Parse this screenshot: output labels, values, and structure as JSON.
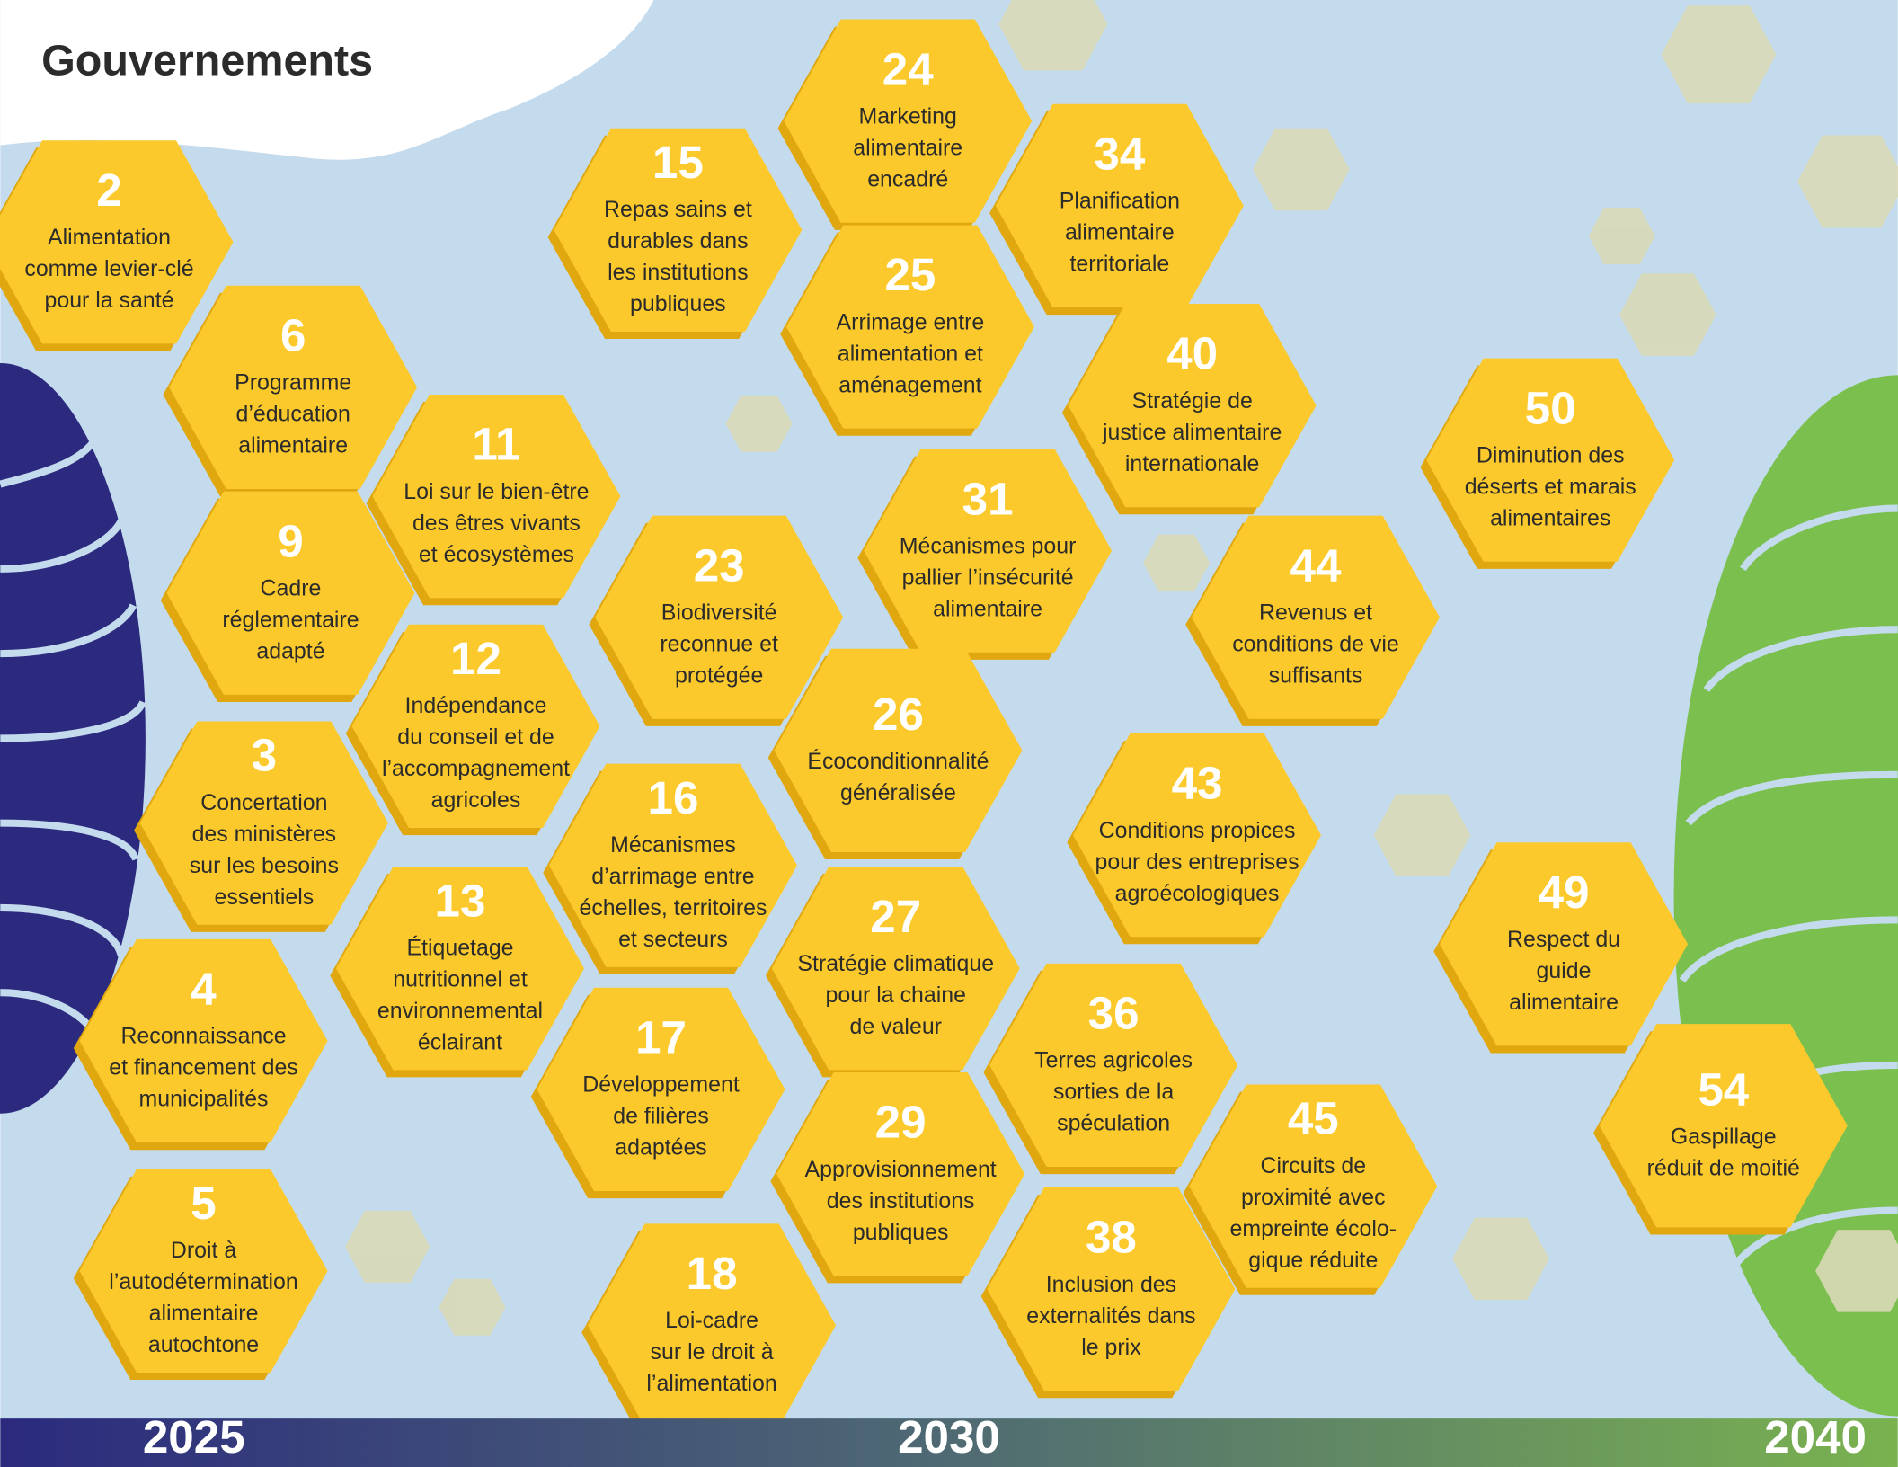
{
  "header": {
    "title": "Gouvernements"
  },
  "hexes": [
    {
      "number": "2",
      "lines": [
        "Alimentation",
        "comme levier-clé",
        "pour la santé"
      ]
    },
    {
      "number": "6",
      "lines": [
        "Programme",
        "d’éducation",
        "alimentaire"
      ]
    },
    {
      "number": "9",
      "lines": [
        "Cadre",
        "réglementaire",
        "adapté"
      ]
    },
    {
      "number": "11",
      "lines": [
        "Loi sur le bien-être",
        "des êtres vivants",
        "et écosystèmes"
      ]
    },
    {
      "number": "12",
      "lines": [
        "Indépendance",
        "du conseil et de",
        "l’accompagnement",
        "agricoles"
      ]
    },
    {
      "number": "3",
      "lines": [
        "Concertation",
        "des ministères",
        "sur les besoins",
        "essentiels"
      ]
    },
    {
      "number": "13",
      "lines": [
        "Étiquetage",
        "nutritionnel et",
        "environnemental",
        "éclairant"
      ]
    },
    {
      "number": "4",
      "lines": [
        "Reconnaissance",
        "et financement des",
        "municipalités"
      ]
    },
    {
      "number": "5",
      "lines": [
        "Droit à",
        "l’autodétermination",
        "alimentaire",
        "autochtone"
      ]
    },
    {
      "number": "15",
      "lines": [
        "Repas sains et",
        "durables dans",
        "les institutions",
        "publiques"
      ]
    },
    {
      "number": "24",
      "lines": [
        "Marketing",
        "alimentaire",
        "encadré"
      ]
    },
    {
      "number": "25",
      "lines": [
        "Arrimage entre",
        "alimentation et",
        "aménagement"
      ]
    },
    {
      "number": "34",
      "lines": [
        "Planification",
        "alimentaire",
        "territoriale"
      ]
    },
    {
      "number": "23",
      "lines": [
        "Biodiversité",
        "reconnue et",
        "protégée"
      ]
    },
    {
      "number": "31",
      "lines": [
        "Mécanismes pour",
        "pallier l’insécurité",
        "alimentaire"
      ]
    },
    {
      "number": "40",
      "lines": [
        "Stratégie de",
        "justice alimentaire",
        "internationale"
      ]
    },
    {
      "number": "16",
      "lines": [
        "Mécanismes",
        "d’arrimage entre",
        "échelles, territoires",
        "et secteurs"
      ]
    },
    {
      "number": "26",
      "lines": [
        "Écoconditionnalité",
        "généralisée"
      ]
    },
    {
      "number": "27",
      "lines": [
        "Stratégie climatique",
        "pour la chaine",
        "de valeur"
      ]
    },
    {
      "number": "17",
      "lines": [
        "Développement",
        "de filières",
        "adaptées"
      ]
    },
    {
      "number": "29",
      "lines": [
        "Approvisionnement",
        "des institutions",
        "publiques"
      ]
    },
    {
      "number": "18",
      "lines": [
        "Loi-cadre",
        "sur le droit à",
        "l’alimentation"
      ]
    },
    {
      "number": "44",
      "lines": [
        "Revenus et",
        "conditions de vie",
        "suffisants"
      ]
    },
    {
      "number": "43",
      "lines": [
        "Conditions propices",
        "pour des entreprises",
        "agroécologiques"
      ]
    },
    {
      "number": "36",
      "lines": [
        "Terres agricoles",
        "sorties de la",
        "spéculation"
      ]
    },
    {
      "number": "38",
      "lines": [
        "Inclusion des",
        "externalités dans",
        "le prix"
      ]
    },
    {
      "number": "45",
      "lines": [
        "Circuits de",
        "proximité avec",
        "empreinte écolo-",
        "gique réduite"
      ]
    },
    {
      "number": "50",
      "lines": [
        "Diminution des",
        "déserts et marais",
        "alimentaires"
      ]
    },
    {
      "number": "49",
      "lines": [
        "Respect du",
        "guide",
        "alimentaire"
      ]
    },
    {
      "number": "54",
      "lines": [
        "Gaspillage",
        "réduit de moitié"
      ]
    }
  ],
  "timeline": [
    "2025",
    "2030",
    "2040"
  ]
}
